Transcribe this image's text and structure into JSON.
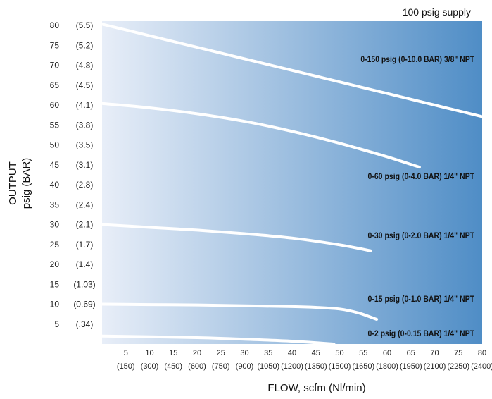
{
  "chart_data": {
    "type": "line",
    "annotation": "100 psig supply",
    "xlabel": "FLOW, scfm (Nl/min)",
    "ylabel": [
      "OUTPUT",
      "psig (BAR)"
    ],
    "xlim": [
      0,
      80
    ],
    "ylim": [
      0,
      83
    ],
    "x_ticks": [
      {
        "value": 5,
        "label": "5",
        "sub": "(150)"
      },
      {
        "value": 10,
        "label": "10",
        "sub": "(300)"
      },
      {
        "value": 15,
        "label": "15",
        "sub": "(450)"
      },
      {
        "value": 20,
        "label": "20",
        "sub": "(600)"
      },
      {
        "value": 25,
        "label": "25",
        "sub": "(750)"
      },
      {
        "value": 30,
        "label": "30",
        "sub": "(900)"
      },
      {
        "value": 35,
        "label": "35",
        "sub": "(1050)"
      },
      {
        "value": 40,
        "label": "40",
        "sub": "(1200)"
      },
      {
        "value": 45,
        "label": "45",
        "sub": "(1350)"
      },
      {
        "value": 50,
        "label": "50",
        "sub": "(1500)"
      },
      {
        "value": 55,
        "label": "55",
        "sub": "(1650)"
      },
      {
        "value": 60,
        "label": "60",
        "sub": "(1800)"
      },
      {
        "value": 65,
        "label": "65",
        "sub": "(1950)"
      },
      {
        "value": 70,
        "label": "70",
        "sub": "(2100)"
      },
      {
        "value": 75,
        "label": "75",
        "sub": "(2250)"
      },
      {
        "value": 80,
        "label": "80",
        "sub": "(2400)"
      }
    ],
    "y_ticks": [
      {
        "value": 80,
        "label": "80",
        "bar": "(5.5)"
      },
      {
        "value": 75,
        "label": "75",
        "bar": "(5.2)"
      },
      {
        "value": 70,
        "label": "70",
        "bar": "(4.8)"
      },
      {
        "value": 65,
        "label": "65",
        "bar": "(4.5)"
      },
      {
        "value": 60,
        "label": "60",
        "bar": "(4.1)"
      },
      {
        "value": 55,
        "label": "55",
        "bar": "(3.8)"
      },
      {
        "value": 50,
        "label": "50",
        "bar": "(3.5)"
      },
      {
        "value": 45,
        "label": "45",
        "bar": "(3.1)"
      },
      {
        "value": 40,
        "label": "40",
        "bar": "(2.8)"
      },
      {
        "value": 35,
        "label": "35",
        "bar": "(2.4)"
      },
      {
        "value": 30,
        "label": "30",
        "bar": "(2.1)"
      },
      {
        "value": 25,
        "label": "25",
        "bar": "(1.7)"
      },
      {
        "value": 20,
        "label": "20",
        "bar": "(1.4)"
      },
      {
        "value": 15,
        "label": "15",
        "bar": "(1.03)"
      },
      {
        "value": 10,
        "label": "10",
        "bar": "(0.69)"
      },
      {
        "value": 5,
        "label": "5",
        "bar": "(.34)"
      }
    ],
    "series": [
      {
        "name": "0-150 psig (0-10.0 BAR) 3/8\" NPT",
        "x": [
          0,
          10,
          20,
          30,
          40,
          50,
          60,
          70,
          80
        ],
        "y": [
          80.3,
          77.4,
          74.5,
          71.6,
          68.7,
          65.8,
          62.9,
          60.0,
          57.1
        ]
      },
      {
        "name": "0-60 psig (0-4.0 BAR) 1/4\" NPT",
        "x": [
          0,
          10,
          20,
          30,
          40,
          50,
          60,
          66.8
        ],
        "y": [
          60.4,
          59.3,
          57.8,
          55.9,
          53.4,
          50.4,
          47.0,
          44.4
        ]
      },
      {
        "name": "0-30 psig (0-2.0 BAR) 1/4\" NPT",
        "x": [
          0,
          10,
          20,
          30,
          40,
          50,
          56.6
        ],
        "y": [
          30.0,
          29.3,
          28.6,
          27.7,
          26.6,
          24.9,
          23.4
        ]
      },
      {
        "name": "0-15 psig (0-1.0 BAR) 1/4\" NPT",
        "x": [
          0,
          10,
          20,
          30,
          40,
          45,
          50,
          54,
          57.8
        ],
        "y": [
          10.0,
          9.9,
          9.8,
          9.6,
          9.4,
          9.2,
          8.8,
          7.8,
          6.2
        ]
      },
      {
        "name": "0-2 psig (0-0.15 BAR) 1/4\" NPT",
        "x": [
          0,
          10,
          20,
          30,
          40,
          48.8
        ],
        "y": [
          2.0,
          1.8,
          1.6,
          1.2,
          0.7,
          0.0
        ]
      }
    ],
    "gradient": {
      "start": "#e8eef8",
      "end": "#4f8dc6"
    },
    "line_color": "#ffffff"
  }
}
